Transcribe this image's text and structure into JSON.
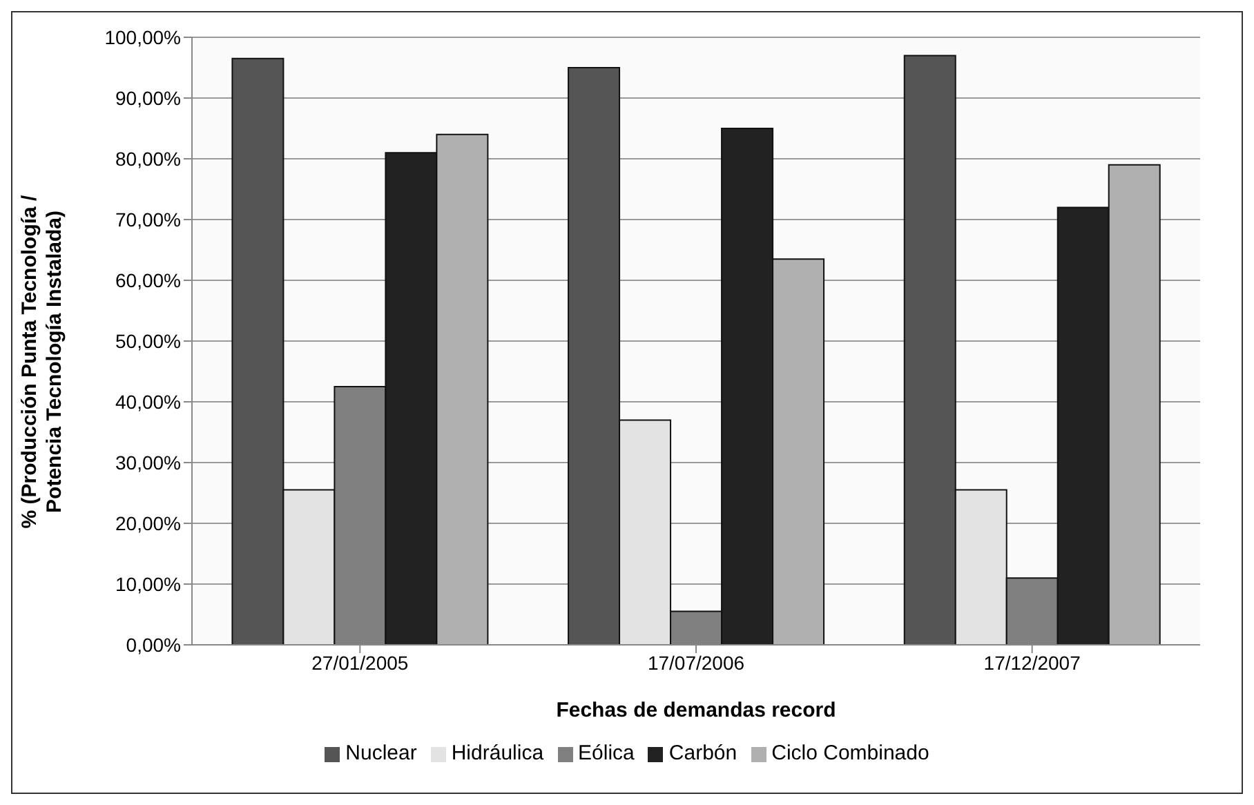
{
  "chart_data": {
    "type": "bar",
    "xlabel": "Fechas de demandas record",
    "ylabel": "% (Producción Punta Tecnología / Potencia Tecnología Instalada)",
    "categories": [
      "27/01/2005",
      "17/07/2006",
      "17/12/2007"
    ],
    "series": [
      {
        "name": "Nuclear",
        "color": "#555555",
        "values": [
          96.5,
          95,
          97
        ]
      },
      {
        "name": "Hidráulica",
        "color": "#e3e3e3",
        "values": [
          25.5,
          37,
          25.5
        ]
      },
      {
        "name": "Eólica",
        "color": "#808080",
        "values": [
          42.5,
          5.5,
          11
        ]
      },
      {
        "name": "Carbón",
        "color": "#222222",
        "values": [
          81,
          85,
          72
        ]
      },
      {
        "name": "Ciclo Combinado",
        "color": "#b0b0b0",
        "values": [
          84,
          63.5,
          79
        ]
      }
    ],
    "ylim": [
      0,
      100
    ],
    "yticks": [
      {
        "value": 0,
        "label": "0,00%"
      },
      {
        "value": 10,
        "label": "10,00%"
      },
      {
        "value": 20,
        "label": "20,00%"
      },
      {
        "value": 30,
        "label": "30,00%"
      },
      {
        "value": 40,
        "label": "40,00%"
      },
      {
        "value": 50,
        "label": "50,00%"
      },
      {
        "value": 60,
        "label": "60,00%"
      },
      {
        "value": 70,
        "label": "70,00%"
      },
      {
        "value": 80,
        "label": "80,00%"
      },
      {
        "value": 90,
        "label": "90,00%"
      },
      {
        "value": 100,
        "label": "100,00%"
      }
    ],
    "grid": "y",
    "legend": "bottom"
  }
}
